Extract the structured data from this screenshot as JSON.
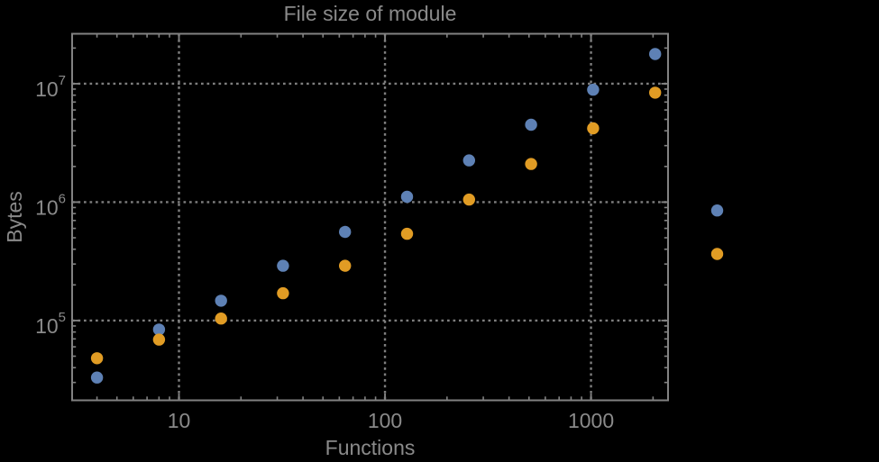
{
  "colors": {
    "background": "#000000",
    "frame": "#828282",
    "grid": "#7e7e7e",
    "text": "#8a8a8a",
    "series_blue": "#5e81b5",
    "series_orange": "#e19c24"
  },
  "chart_data": {
    "type": "scatter",
    "title": "File size of module",
    "xlabel": "Functions",
    "ylabel": "Bytes",
    "x_scale": "log",
    "y_scale": "log",
    "xlim": [
      3.03,
      2365
    ],
    "ylim": [
      21200,
      26400000
    ],
    "grid": "dotted",
    "legend_position": "none",
    "x_ticks": [
      10,
      100,
      1000
    ],
    "x_tick_labels": [
      "10",
      "100",
      "1000"
    ],
    "y_ticks": [
      100000,
      1000000,
      10000000
    ],
    "y_tick_labels": [
      {
        "base": "10",
        "exp": "5"
      },
      {
        "base": "10",
        "exp": "6"
      },
      {
        "base": "10",
        "exp": "7"
      }
    ],
    "x": [
      4,
      8,
      16,
      32,
      64,
      128,
      256,
      512,
      1024,
      2048,
      4096
    ],
    "series": [
      {
        "name": "blue",
        "color": "#5e81b5",
        "values": [
          33000,
          84000,
          147000,
          290000,
          560000,
          1110000,
          2250000,
          4500000,
          8900000,
          17800000,
          850000
        ]
      },
      {
        "name": "orange",
        "color": "#e19c24",
        "values": [
          48000,
          69000,
          104000,
          170000,
          290000,
          540000,
          1050000,
          2100000,
          4200000,
          8400000,
          365000
        ]
      }
    ],
    "note": ""
  }
}
